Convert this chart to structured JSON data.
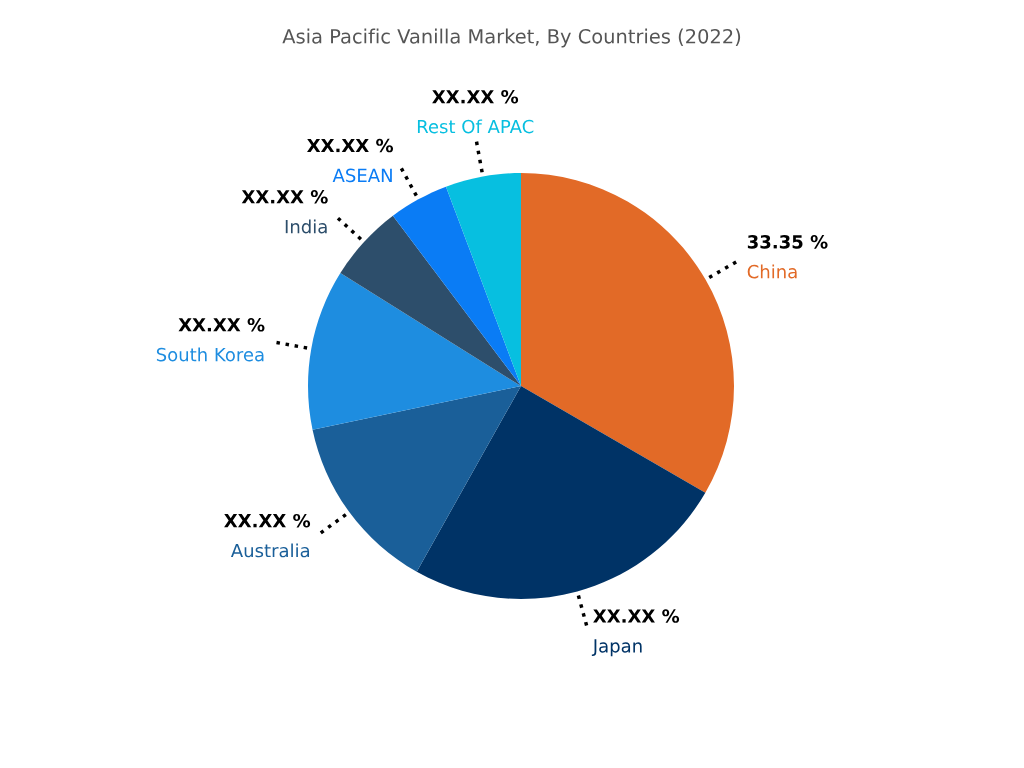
{
  "chart_data": {
    "type": "pie",
    "title": "Asia Pacific Vanilla Market, By Countries (2022)",
    "categories": [
      "China",
      "Japan",
      "Australia",
      "South Korea",
      "India",
      "ASEAN",
      "Rest Of APAC"
    ],
    "values": [
      33.35,
      24.79,
      13.57,
      12.18,
      5.84,
      4.54,
      5.73
    ],
    "value_labels": [
      "33.35 %",
      "XX.XX %",
      "XX.XX %",
      "XX.XX %",
      "XX.XX %",
      "XX.XX %",
      "XX.XX %"
    ],
    "colors": [
      "#e26a27",
      "#003366",
      "#1a5f99",
      "#1e8de0",
      "#2d4e6b",
      "#0a7cf5",
      "#07bfe0"
    ],
    "legend": false
  }
}
